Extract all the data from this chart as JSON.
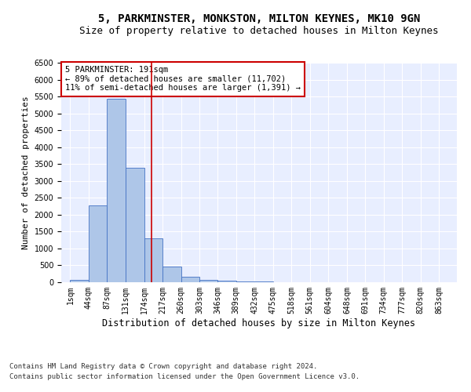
{
  "title1": "5, PARKMINSTER, MONKSTON, MILTON KEYNES, MK10 9GN",
  "title2": "Size of property relative to detached houses in Milton Keynes",
  "xlabel": "Distribution of detached houses by size in Milton Keynes",
  "ylabel": "Number of detached properties",
  "footer1": "Contains HM Land Registry data © Crown copyright and database right 2024.",
  "footer2": "Contains public sector information licensed under the Open Government Licence v3.0.",
  "annotation_line1": "5 PARKMINSTER: 191sqm",
  "annotation_line2": "← 89% of detached houses are smaller (11,702)",
  "annotation_line3": "11% of semi-detached houses are larger (1,391) →",
  "property_size": 191,
  "bin_edges": [
    1,
    44,
    87,
    131,
    174,
    217,
    260,
    303,
    346,
    389,
    432,
    475,
    518,
    561,
    604,
    648,
    691,
    734,
    777,
    820,
    863
  ],
  "bar_heights": [
    75,
    2270,
    5430,
    3380,
    1310,
    470,
    155,
    80,
    55,
    30,
    15,
    10,
    5,
    3,
    2,
    1,
    1,
    1,
    0,
    0
  ],
  "bar_color": "#aec6e8",
  "bar_edge_color": "#4472c4",
  "vline_color": "#cc0000",
  "vline_x": 191,
  "annotation_box_edge": "#cc0000",
  "ylim": [
    0,
    6500
  ],
  "xlim_left": -20,
  "xlim_right": 905,
  "background_color": "#e8eeff",
  "grid_color": "#ffffff",
  "title1_fontsize": 10,
  "title2_fontsize": 9,
  "xlabel_fontsize": 8.5,
  "ylabel_fontsize": 8,
  "tick_fontsize": 7,
  "annotation_fontsize": 7.5,
  "footer_fontsize": 6.5
}
